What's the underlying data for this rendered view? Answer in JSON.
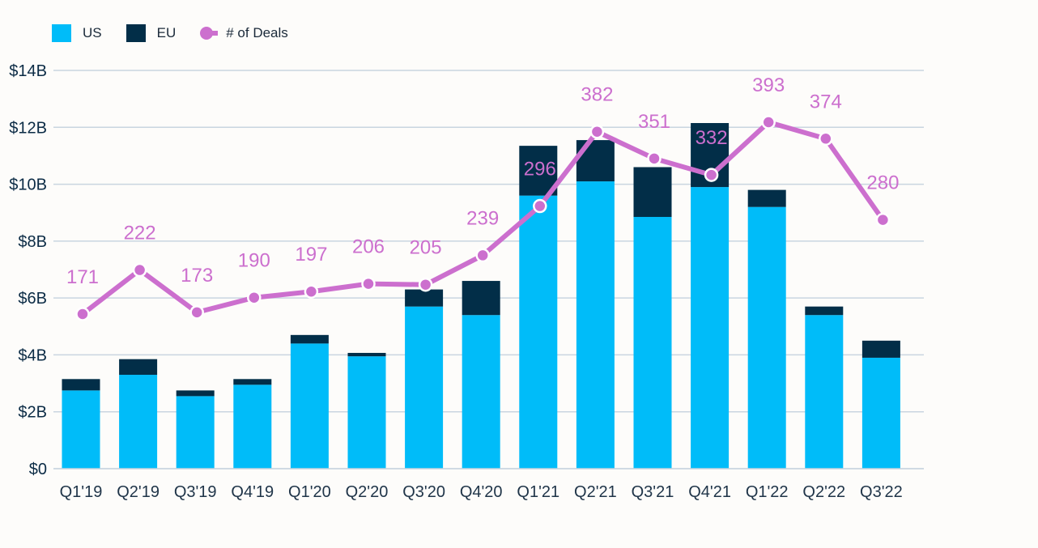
{
  "legend": [
    {
      "label": "US",
      "color": "#00bcf9",
      "kind": "box"
    },
    {
      "label": "EU",
      "color": "#022e48",
      "kind": "box"
    },
    {
      "label": "# of Deals",
      "color": "#cc6fce",
      "kind": "line"
    }
  ],
  "chart_data": {
    "type": "bar",
    "stacked": true,
    "categories": [
      "Q1'19",
      "Q2'19",
      "Q3'19",
      "Q4'19",
      "Q1'20",
      "Q2'20",
      "Q3'20",
      "Q4'20",
      "Q1'21",
      "Q2'21",
      "Q3'21",
      "Q4'21",
      "Q1'22",
      "Q2'22",
      "Q3'22"
    ],
    "series": [
      {
        "name": "US",
        "color": "#00bcf9",
        "values": [
          2.75,
          3.3,
          2.55,
          2.95,
          4.4,
          3.95,
          5.7,
          5.4,
          9.6,
          10.1,
          8.85,
          9.9,
          9.2,
          5.4,
          3.9
        ]
      },
      {
        "name": "EU",
        "color": "#022e48",
        "values": [
          0.4,
          0.55,
          0.2,
          0.2,
          0.3,
          0.12,
          0.6,
          1.2,
          1.75,
          1.45,
          1.75,
          2.25,
          0.6,
          0.3,
          0.6
        ]
      }
    ],
    "line_series": {
      "name": "# of Deals",
      "color": "#cc6fce",
      "values": [
        171,
        222,
        173,
        190,
        197,
        206,
        205,
        239,
        296,
        382,
        351,
        332,
        393,
        374,
        280
      ]
    },
    "y_axis": {
      "ticks": [
        "$0",
        "$2B",
        "$4B",
        "$6B",
        "$8B",
        "$10B",
        "$12B",
        "$14B"
      ],
      "tick_values": [
        0,
        2,
        4,
        6,
        8,
        10,
        12,
        14
      ],
      "ylim": [
        0,
        14
      ],
      "unit": "$B"
    },
    "grid": true,
    "legend_position": "top-left"
  }
}
